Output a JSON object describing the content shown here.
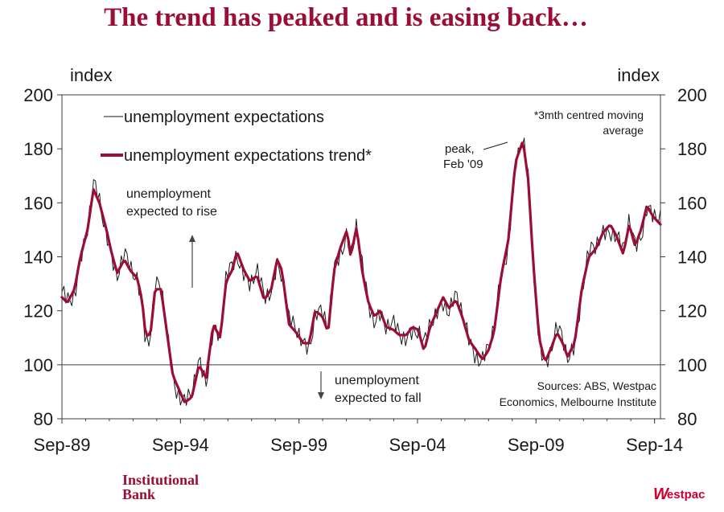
{
  "title": "The trend has peaked and is easing back…",
  "footer": {
    "bank_line1": "Institutional",
    "bank_line2": "Bank",
    "westpac_mark": "W",
    "westpac_text": "estpac"
  },
  "chart_data": {
    "type": "line",
    "left_unit": "index",
    "right_unit": "index",
    "ylim": [
      80,
      200
    ],
    "yticks": [
      80,
      100,
      120,
      140,
      160,
      180,
      200
    ],
    "xlim": [
      1989.67,
      2014.92
    ],
    "xticks": [
      {
        "label": "Sep-89",
        "t": 1989.67
      },
      {
        "label": "Sep-94",
        "t": 1994.67
      },
      {
        "label": "Sep-99",
        "t": 1999.67
      },
      {
        "label": "Sep-04",
        "t": 2004.67
      },
      {
        "label": "Sep-09",
        "t": 2009.67
      },
      {
        "label": "Sep-14",
        "t": 2014.67
      }
    ],
    "reference_line": 100,
    "legend": [
      {
        "label": "unemployment expectations",
        "color": "#1a1a1a"
      },
      {
        "label": "unemployment expectations trend*",
        "color": "#9b0d34"
      }
    ],
    "annotations": {
      "footnote_line1": "*3mth centred moving",
      "footnote_line2": "average",
      "peak_line1": "peak,",
      "peak_line2": "Feb '09",
      "rise_line1": "unemployment",
      "rise_line2": "expected to rise",
      "fall_line1": "unemployment",
      "fall_line2": "expected to fall",
      "sources_line1": "Sources: ABS, Westpac",
      "sources_line2": "Economics, Melbourne Institute"
    },
    "anchors": [
      [
        1989.67,
        125
      ],
      [
        1989.9,
        123
      ],
      [
        1990.2,
        128
      ],
      [
        1990.45,
        140
      ],
      [
        1990.75,
        150
      ],
      [
        1991.0,
        165
      ],
      [
        1991.25,
        160
      ],
      [
        1991.55,
        150
      ],
      [
        1991.75,
        142
      ],
      [
        1992.0,
        134
      ],
      [
        1992.3,
        139
      ],
      [
        1992.55,
        135
      ],
      [
        1992.85,
        132
      ],
      [
        1993.05,
        124
      ],
      [
        1993.2,
        111
      ],
      [
        1993.4,
        111
      ],
      [
        1993.6,
        128
      ],
      [
        1993.85,
        128
      ],
      [
        1994.1,
        112
      ],
      [
        1994.35,
        96
      ],
      [
        1994.6,
        91
      ],
      [
        1994.85,
        86
      ],
      [
        1995.15,
        88
      ],
      [
        1995.45,
        100
      ],
      [
        1995.75,
        95
      ],
      [
        1996.05,
        115
      ],
      [
        1996.35,
        110
      ],
      [
        1996.6,
        131
      ],
      [
        1996.85,
        135
      ],
      [
        1997.05,
        142
      ],
      [
        1997.35,
        135
      ],
      [
        1997.6,
        131
      ],
      [
        1997.9,
        133
      ],
      [
        1998.2,
        124
      ],
      [
        1998.5,
        128
      ],
      [
        1998.75,
        139
      ],
      [
        1998.95,
        135
      ],
      [
        1999.25,
        115
      ],
      [
        1999.55,
        112
      ],
      [
        1999.85,
        108
      ],
      [
        2000.1,
        108
      ],
      [
        2000.35,
        120
      ],
      [
        2000.65,
        118
      ],
      [
        2000.9,
        112
      ],
      [
        2001.15,
        135
      ],
      [
        2001.4,
        143
      ],
      [
        2001.7,
        150
      ],
      [
        2001.85,
        140
      ],
      [
        2002.1,
        151
      ],
      [
        2002.35,
        134
      ],
      [
        2002.6,
        123
      ],
      [
        2002.85,
        118
      ],
      [
        2003.1,
        120
      ],
      [
        2003.35,
        114
      ],
      [
        2003.65,
        113
      ],
      [
        2003.9,
        111
      ],
      [
        2004.2,
        111
      ],
      [
        2004.45,
        114
      ],
      [
        2004.7,
        113
      ],
      [
        2004.95,
        105
      ],
      [
        2005.2,
        114
      ],
      [
        2005.5,
        120
      ],
      [
        2005.75,
        125
      ],
      [
        2006.0,
        121
      ],
      [
        2006.3,
        124
      ],
      [
        2006.55,
        118
      ],
      [
        2006.85,
        109
      ],
      [
        2007.1,
        106
      ],
      [
        2007.4,
        102
      ],
      [
        2007.65,
        105
      ],
      [
        2007.9,
        112
      ],
      [
        2008.2,
        133
      ],
      [
        2008.5,
        146
      ],
      [
        2008.8,
        175
      ],
      [
        2009.12,
        183
      ],
      [
        2009.35,
        168
      ],
      [
        2009.55,
        138
      ],
      [
        2009.8,
        110
      ],
      [
        2010.05,
        101
      ],
      [
        2010.3,
        106
      ],
      [
        2010.55,
        112
      ],
      [
        2010.8,
        108
      ],
      [
        2011.0,
        103
      ],
      [
        2011.3,
        108
      ],
      [
        2011.6,
        128
      ],
      [
        2011.9,
        140
      ],
      [
        2012.2,
        143
      ],
      [
        2012.5,
        149
      ],
      [
        2012.8,
        152
      ],
      [
        2013.05,
        148
      ],
      [
        2013.35,
        141
      ],
      [
        2013.6,
        152
      ],
      [
        2013.85,
        144
      ],
      [
        2014.1,
        150
      ],
      [
        2014.35,
        159
      ],
      [
        2014.6,
        155
      ],
      [
        2014.92,
        152
      ]
    ]
  }
}
